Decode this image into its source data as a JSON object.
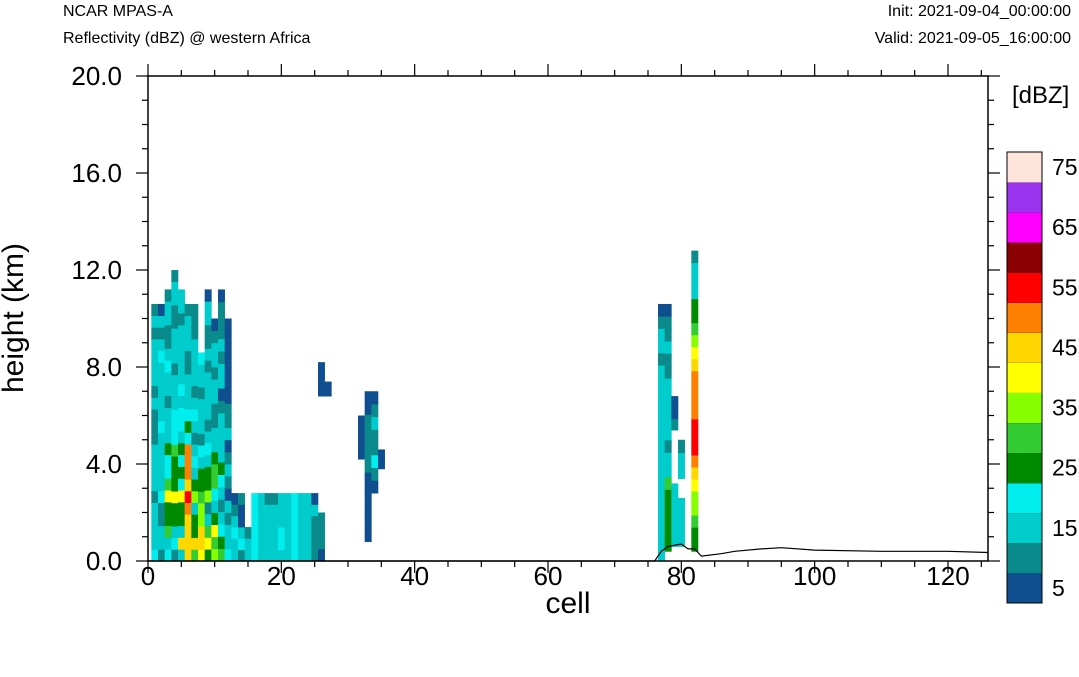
{
  "header": {
    "model": "NCAR MPAS-A",
    "subtitle": "Reflectivity (dBZ) @ western Africa",
    "init": "Init: 2021-09-04_00:00:00",
    "valid": "Valid: 2021-09-05_16:00:00"
  },
  "chart_data": {
    "type": "heatmap",
    "title": "Reflectivity (dBZ) @ western Africa",
    "xlabel": "cell",
    "ylabel": "height (km)",
    "xlim": [
      0,
      126
    ],
    "ylim": [
      0,
      20
    ],
    "x_ticks": [
      0,
      20,
      40,
      60,
      80,
      100,
      120
    ],
    "y_ticks": [
      0,
      4,
      8,
      12,
      16,
      20
    ],
    "y_tick_labels": [
      "0.0",
      "4.0",
      "8.0",
      "12.0",
      "16.0",
      "20.0"
    ],
    "colorbar": {
      "unit": "[dBZ]",
      "levels": [
        5,
        10,
        15,
        20,
        25,
        30,
        35,
        40,
        45,
        50,
        55,
        60,
        65,
        70,
        75
      ],
      "colors": [
        "#0f4f8f",
        "#0a8a8a",
        "#00cccc",
        "#00eeee",
        "#008a00",
        "#33cc33",
        "#88ff00",
        "#ffff00",
        "#ffd700",
        "#ff8000",
        "#ff0000",
        "#8b0000",
        "#ff00ff",
        "#9933ee",
        "#ffe4dc"
      ],
      "labels": [
        "5",
        "15",
        "25",
        "35",
        "45",
        "55",
        "65",
        "75"
      ]
    },
    "columns": [
      {
        "x": 1,
        "top": 10.6,
        "values": [
          20,
          15,
          15,
          15,
          15,
          10,
          15,
          15,
          15,
          15,
          10,
          10,
          10,
          15,
          10,
          15,
          15,
          15,
          15,
          10,
          15,
          10
        ]
      },
      {
        "x": 2,
        "top": 10.6,
        "values": [
          10,
          15,
          15,
          10,
          10,
          20,
          15,
          15,
          15,
          15,
          15,
          20,
          15,
          15,
          15,
          15,
          15,
          20,
          15,
          10,
          15,
          5
        ]
      },
      {
        "x": 3,
        "top": 11.2,
        "values": [
          20,
          15,
          30,
          25,
          25,
          40,
          30,
          20,
          20,
          25,
          15,
          15,
          15,
          10,
          15,
          15,
          20,
          15,
          10,
          10,
          15,
          15,
          10
        ]
      },
      {
        "x": 4,
        "top": 12.0,
        "values": [
          10,
          20,
          15,
          25,
          25,
          40,
          25,
          25,
          25,
          30,
          20,
          20,
          20,
          15,
          15,
          15,
          10,
          15,
          15,
          15,
          10,
          10,
          15,
          15,
          10
        ]
      },
      {
        "x": 5,
        "top": 11.2,
        "values": [
          15,
          45,
          15,
          25,
          25,
          40,
          20,
          25,
          20,
          25,
          15,
          20,
          20,
          15,
          20,
          15,
          15,
          15,
          15,
          15,
          10,
          15,
          15
        ]
      },
      {
        "x": 6,
        "top": 10.6,
        "values": [
          45,
          45,
          45,
          45,
          50,
          55,
          45,
          50,
          50,
          50,
          20,
          25,
          20,
          15,
          15,
          15,
          10,
          10,
          15,
          15,
          15,
          10
        ]
      },
      {
        "x": 7,
        "top": 10.6,
        "values": [
          30,
          45,
          25,
          25,
          15,
          35,
          25,
          15,
          20,
          15,
          10,
          15,
          20,
          15,
          10,
          15,
          15,
          15,
          15,
          10,
          10,
          10
        ]
      },
      {
        "x": 8,
        "top": 8.6,
        "values": [
          40,
          45,
          45,
          35,
          35,
          30,
          25,
          25,
          15,
          20,
          10,
          15,
          15,
          15,
          10,
          15,
          15,
          20
        ]
      },
      {
        "x": 9,
        "top": 11.2,
        "values": [
          25,
          40,
          30,
          15,
          10,
          35,
          25,
          25,
          15,
          20,
          15,
          10,
          15,
          15,
          15,
          15,
          10,
          15,
          10,
          10,
          15,
          15,
          5
        ]
      },
      {
        "x": 10,
        "top": 10.0,
        "values": [
          35,
          30,
          40,
          25,
          15,
          20,
          30,
          30,
          25,
          15,
          15,
          10,
          10,
          15,
          15,
          10,
          15,
          15,
          10,
          5
        ]
      },
      {
        "x": 11,
        "top": 11.2,
        "values": [
          30,
          25,
          20,
          15,
          10,
          15,
          20,
          25,
          15,
          15,
          15,
          15,
          10,
          5,
          15,
          15,
          10,
          15,
          10,
          10,
          10,
          5
        ]
      },
      {
        "x": 12,
        "top": 10.0,
        "values": [
          20,
          15,
          15,
          10,
          15,
          5,
          10,
          15,
          10,
          5,
          15,
          10,
          10,
          5,
          5,
          5,
          5,
          5,
          5,
          5
        ]
      },
      {
        "x": 13,
        "top": 2.8,
        "values": [
          15,
          15,
          20,
          15,
          10,
          5
        ]
      },
      {
        "x": 14,
        "top": 2.8,
        "values": [
          10,
          20,
          15,
          5,
          5,
          10
        ]
      },
      {
        "x": 15,
        "top": 1.4,
        "values": [
          15,
          15,
          10
        ]
      },
      {
        "x": 16,
        "top": 2.8,
        "values": [
          20,
          20,
          20,
          20,
          20,
          20
        ]
      },
      {
        "x": 17,
        "top": 2.8,
        "values": [
          15,
          15,
          15,
          15,
          15,
          15
        ]
      },
      {
        "x": 18,
        "top": 2.8,
        "values": [
          15,
          15,
          15,
          15,
          15,
          10
        ]
      },
      {
        "x": 19,
        "top": 2.8,
        "values": [
          15,
          15,
          15,
          15,
          15,
          10
        ]
      },
      {
        "x": 20,
        "top": 2.8,
        "values": [
          15,
          20,
          20,
          15,
          15,
          15
        ]
      },
      {
        "x": 21,
        "top": 2.8,
        "values": [
          15,
          15,
          15,
          15,
          15,
          15
        ]
      },
      {
        "x": 22,
        "top": 2.8,
        "values": [
          20,
          20,
          20,
          20,
          20,
          20
        ]
      },
      {
        "x": 23,
        "top": 2.8,
        "values": [
          15,
          15,
          15,
          15,
          15,
          15
        ]
      },
      {
        "x": 24,
        "top": 2.8,
        "values": [
          15,
          15,
          15,
          15,
          15,
          15
        ]
      },
      {
        "x": 25,
        "top": 2.8,
        "values": [
          10,
          10,
          10,
          10,
          15,
          5
        ]
      },
      {
        "x": 26,
        "top": 2.0,
        "values": [
          5,
          10,
          10,
          10
        ]
      },
      {
        "x": 26,
        "base": 6.8,
        "top": 8.2,
        "values": [
          5,
          5,
          5
        ]
      },
      {
        "x": 27,
        "base": 6.8,
        "top": 7.4,
        "values": [
          5
        ]
      },
      {
        "x": 32,
        "base": 4.2,
        "top": 6.0,
        "values": [
          5,
          5,
          5
        ]
      },
      {
        "x": 33,
        "base": 0.8,
        "top": 7.0,
        "values": [
          5,
          5,
          5,
          5,
          5,
          5,
          10,
          10,
          10,
          10,
          10,
          5,
          5
        ]
      },
      {
        "x": 34,
        "base": 2.8,
        "top": 7.0,
        "values": [
          5,
          10,
          20,
          10,
          10,
          15,
          10,
          5
        ]
      },
      {
        "x": 35,
        "base": 3.8,
        "top": 4.6,
        "values": [
          5,
          5
        ]
      },
      {
        "x": 77,
        "base": 0.0,
        "top": 10.6,
        "values": [
          15,
          15,
          15,
          15,
          15,
          15,
          15,
          15,
          15,
          15,
          15,
          15,
          15,
          15,
          15,
          15,
          10,
          15,
          15,
          10,
          5
        ]
      },
      {
        "x": 78,
        "base": 0.4,
        "top": 10.6,
        "values": [
          25,
          25,
          25,
          25,
          25,
          30,
          15,
          15,
          10,
          15,
          15,
          15,
          15,
          15,
          10,
          10,
          15,
          10,
          10,
          5
        ]
      },
      {
        "x": 79,
        "base": 0.6,
        "top": 3.2,
        "values": [
          15,
          15,
          15,
          15,
          15
        ]
      },
      {
        "x": 79,
        "base": 5.4,
        "top": 6.8,
        "values": [
          10,
          5,
          5
        ]
      },
      {
        "x": 80,
        "base": 0.6,
        "top": 2.6,
        "values": [
          15,
          15,
          15,
          15
        ]
      },
      {
        "x": 80,
        "base": 3.4,
        "top": 5.0,
        "values": [
          15,
          15,
          10
        ]
      },
      {
        "x": 82,
        "base": 0.4,
        "top": 12.8,
        "values": [
          25,
          25,
          30,
          35,
          35,
          40,
          45,
          50,
          55,
          55,
          55,
          50,
          50,
          50,
          50,
          45,
          40,
          35,
          30,
          25,
          25,
          15,
          15,
          15,
          10
        ]
      }
    ],
    "terrain": [
      [
        0,
        0
      ],
      [
        76,
        0
      ],
      [
        77,
        0.4
      ],
      [
        78,
        0.6
      ],
      [
        80,
        0.7
      ],
      [
        81,
        0.5
      ],
      [
        82,
        0.5
      ],
      [
        83,
        0.2
      ],
      [
        86,
        0.3
      ],
      [
        88,
        0.4
      ],
      [
        92,
        0.5
      ],
      [
        95,
        0.55
      ],
      [
        100,
        0.45
      ],
      [
        110,
        0.4
      ],
      [
        120,
        0.4
      ],
      [
        126,
        0.35
      ]
    ]
  }
}
